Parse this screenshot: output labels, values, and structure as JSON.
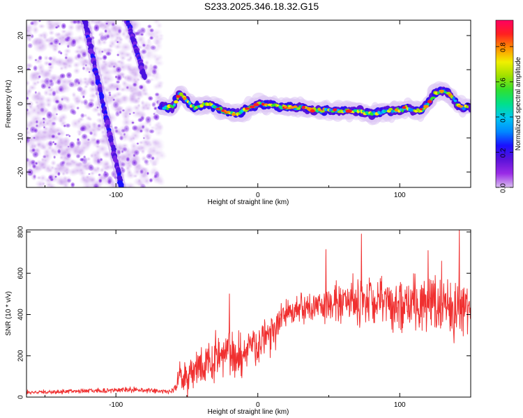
{
  "title": "S233.2025.346.18.32.G15",
  "chart_data": [
    {
      "type": "heatmap",
      "xlabel": "Height of straight line (km)",
      "ylabel": "Frequency (Hz)",
      "xlim": [
        -163,
        150
      ],
      "ylim": [
        -24.5,
        24.5
      ],
      "x_ticks": [
        -100,
        0,
        100
      ],
      "y_ticks": [
        20,
        10,
        0,
        -10,
        -20
      ],
      "colorbar": {
        "label": "Normalized spectral amplitude",
        "range": [
          0,
          0.95
        ],
        "ticks": [
          0.0,
          0.2,
          0.4,
          0.6,
          0.8
        ],
        "colors": [
          "#d9bff0",
          "#9a2be6",
          "#5a12d9",
          "#1a10ff",
          "#0088ff",
          "#00c8f0",
          "#00e08a",
          "#30e030",
          "#a0e000",
          "#f0f000",
          "#ff9000",
          "#ff2020",
          "#ff0060"
        ]
      },
      "streaks": [
        {
          "x_start": -122,
          "f_start": 24.5,
          "x_end": -96,
          "f_end": -24.5
        },
        {
          "x_start": -92,
          "f_start": 24.5,
          "x_end": -80,
          "f_end": 8
        }
      ],
      "signal_ridge": {
        "x": [
          -68,
          -60,
          -55,
          -45,
          -35,
          -25,
          -15,
          -5,
          0,
          10,
          20,
          30,
          40,
          50,
          60,
          70,
          80,
          90,
          100,
          105,
          110,
          115,
          120,
          125,
          130,
          135,
          140,
          145,
          150
        ],
        "frequency_hz": [
          -1,
          -1,
          3,
          -1,
          0,
          -2,
          -3,
          -1,
          0,
          -0.5,
          -1,
          -1,
          -2,
          -2,
          -2,
          -2,
          -3,
          -2,
          -2,
          -1,
          -2,
          -2,
          0,
          3,
          4,
          3,
          0,
          -1,
          -1
        ]
      }
    },
    {
      "type": "line",
      "xlabel": "Height of straight line (km)",
      "ylabel": "SNR (10 * v/v)",
      "xlim": [
        -163,
        150
      ],
      "ylim": [
        0,
        810
      ],
      "x_ticks": [
        -100,
        0,
        100
      ],
      "y_ticks": [
        0,
        200,
        400,
        600,
        800
      ],
      "series": [
        {
          "name": "SNR",
          "color": "#f03030",
          "x": [
            -163,
            -150,
            -140,
            -130,
            -120,
            -110,
            -100,
            -90,
            -80,
            -70,
            -65,
            -60,
            -55,
            -50,
            -45,
            -40,
            -35,
            -30,
            -25,
            -20,
            -15,
            -10,
            -5,
            0,
            5,
            10,
            15,
            20,
            25,
            30,
            40,
            50,
            60,
            70,
            80,
            90,
            100,
            110,
            120,
            130,
            140,
            150
          ],
          "values": [
            22,
            24,
            26,
            28,
            30,
            32,
            34,
            36,
            34,
            30,
            26,
            30,
            100,
            110,
            120,
            150,
            170,
            180,
            210,
            220,
            190,
            220,
            260,
            250,
            300,
            330,
            360,
            400,
            420,
            430,
            445,
            450,
            455,
            450,
            455,
            460,
            450,
            460,
            460,
            455,
            450,
            450
          ],
          "noise_amplitude": [
            10,
            10,
            12,
            12,
            14,
            15,
            16,
            16,
            15,
            14,
            12,
            15,
            80,
            90,
            90,
            110,
            120,
            120,
            130,
            140,
            130,
            130,
            140,
            130,
            120,
            110,
            110,
            90,
            90,
            90,
            95,
            110,
            120,
            130,
            130,
            140,
            150,
            150,
            150,
            160,
            170,
            160
          ],
          "peaks": [
            {
              "x": -20,
              "value": 500
            },
            {
              "x": 48,
              "value": 715
            },
            {
              "x": 73,
              "value": 790
            },
            {
              "x": 120,
              "value": 710
            },
            {
              "x": 142,
              "value": 810
            }
          ]
        }
      ]
    }
  ]
}
